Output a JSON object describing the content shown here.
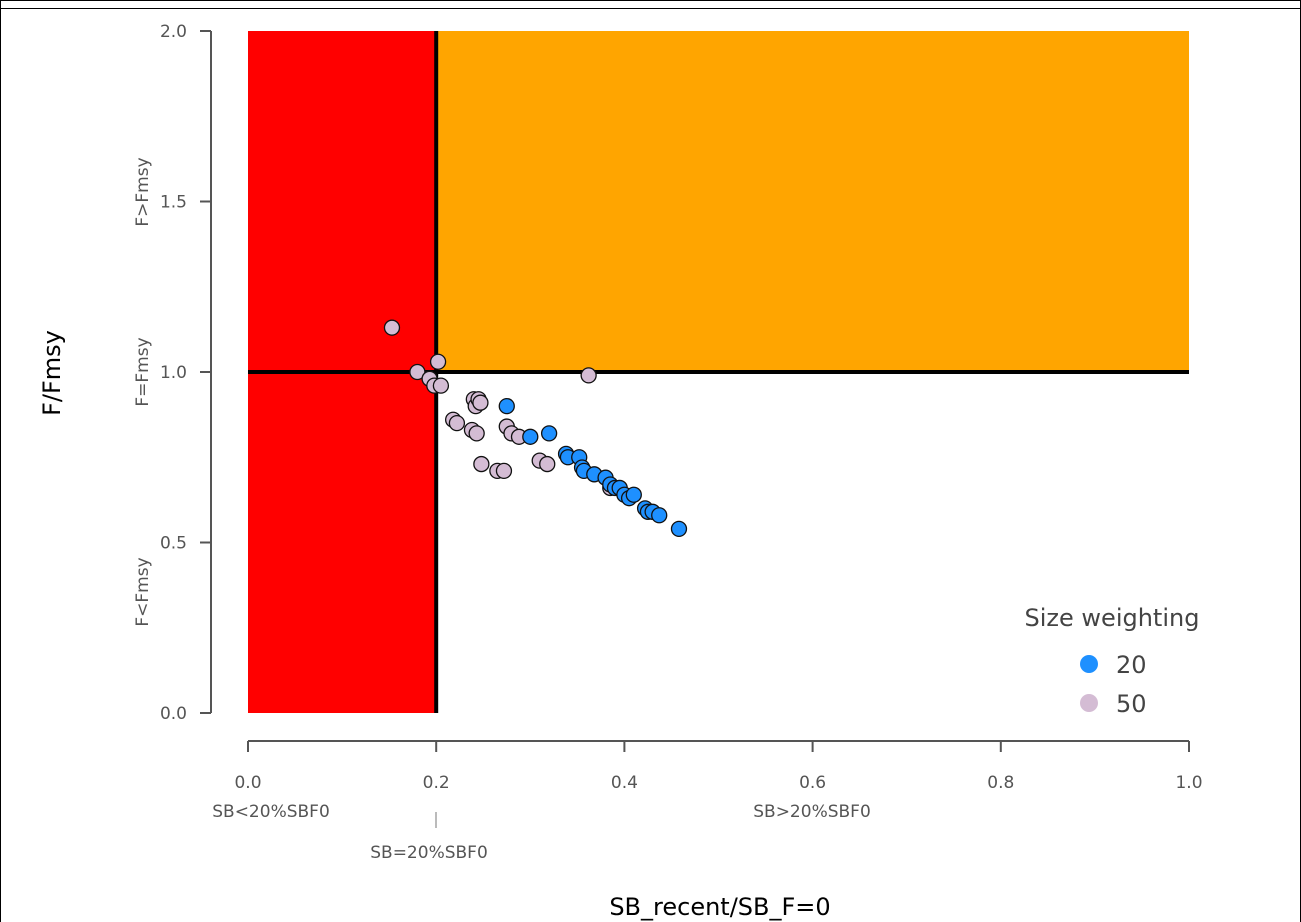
{
  "chart_data": {
    "type": "scatter",
    "xlabel": "SB_recent/SB_F=0",
    "ylabel": "F/Fmsy",
    "xlim": [
      0,
      1
    ],
    "ylim": [
      0,
      2
    ],
    "x_ticks": [
      0.0,
      0.2,
      0.4,
      0.6,
      0.8,
      1.0
    ],
    "y_ticks": [
      0.0,
      0.5,
      1.0,
      1.5,
      2.0
    ],
    "x_tick_labels": [
      "0.0",
      "0.2",
      "0.4",
      "0.6",
      "0.8",
      "1.0"
    ],
    "y_tick_labels": [
      "0.0",
      "0.5",
      "1.0",
      "1.5",
      "2.0"
    ],
    "x_annotations": {
      "left": "SB<20%SBF0",
      "middle": "SB=20%SBF0",
      "right": "SB>20%SBF0"
    },
    "y_annotations": {
      "upper": "F>Fmsy",
      "middle": "F=Fmsy",
      "lower": "F<Fmsy"
    },
    "regions": [
      {
        "x": [
          0,
          0.2
        ],
        "y": [
          0,
          2
        ],
        "color": "#ff0000"
      },
      {
        "x": [
          0.2,
          1.0
        ],
        "y": [
          1,
          2
        ],
        "color": "#ffa500"
      }
    ],
    "reference_lines": {
      "x": 0.2,
      "y": 1.0
    },
    "legend": {
      "title": "Size weighting",
      "position": "bottom-right"
    },
    "series": [
      {
        "name": "20",
        "color": "#1e90ff",
        "x": [
          0.275,
          0.3,
          0.32,
          0.338,
          0.34,
          0.352,
          0.355,
          0.357,
          0.368,
          0.38,
          0.385,
          0.39,
          0.395,
          0.4,
          0.405,
          0.41,
          0.422,
          0.425,
          0.43,
          0.437,
          0.458
        ],
        "y": [
          0.9,
          0.81,
          0.82,
          0.76,
          0.75,
          0.75,
          0.72,
          0.71,
          0.7,
          0.69,
          0.67,
          0.66,
          0.66,
          0.64,
          0.63,
          0.64,
          0.6,
          0.59,
          0.59,
          0.58,
          0.54
        ]
      },
      {
        "name": "50",
        "color": "#d4bcd4",
        "x": [
          0.153,
          0.18,
          0.193,
          0.198,
          0.202,
          0.205,
          0.218,
          0.222,
          0.24,
          0.242,
          0.245,
          0.247,
          0.238,
          0.243,
          0.248,
          0.275,
          0.28,
          0.288,
          0.265,
          0.272,
          0.31,
          0.318,
          0.362,
          0.385
        ],
        "y": [
          1.13,
          1.0,
          0.98,
          0.96,
          1.03,
          0.96,
          0.86,
          0.85,
          0.92,
          0.9,
          0.92,
          0.91,
          0.83,
          0.82,
          0.73,
          0.84,
          0.82,
          0.81,
          0.71,
          0.71,
          0.74,
          0.73,
          0.99,
          0.66
        ]
      }
    ]
  }
}
